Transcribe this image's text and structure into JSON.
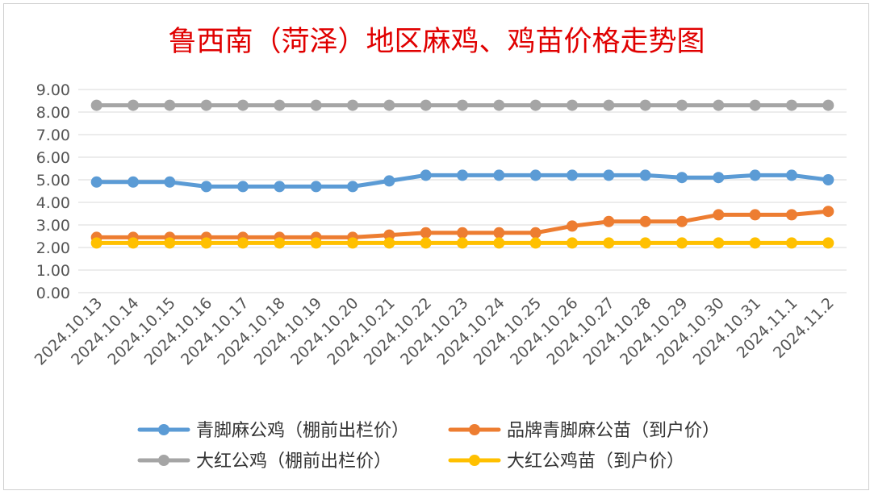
{
  "chart_data": {
    "type": "line",
    "title": "鲁西南（菏泽）地区麻鸡、鸡苗价格走势图",
    "xlabel": "",
    "ylabel": "",
    "ylim": [
      0,
      9
    ],
    "y_ticks": [
      "0.00",
      "1.00",
      "2.00",
      "3.00",
      "4.00",
      "5.00",
      "6.00",
      "7.00",
      "8.00",
      "9.00"
    ],
    "grid": true,
    "legend_position": "bottom",
    "categories": [
      "2024.10.13",
      "2024.10.14",
      "2024.10.15",
      "2024.10.16",
      "2024.10.17",
      "2024.10.18",
      "2024.10.19",
      "2024.10.20",
      "2024.10.21",
      "2024.10.22",
      "2024.10.23",
      "2024.10.24",
      "2024.10.25",
      "2024.10.26",
      "2024.10.27",
      "2024.10.28",
      "2024.10.29",
      "2024.10.30",
      "2024.10.31",
      "2024.11.1",
      "2024.11.2"
    ],
    "series": [
      {
        "name": "青脚麻公鸡（棚前出栏价）",
        "color": "#5b9bd5",
        "values": [
          4.9,
          4.9,
          4.9,
          4.7,
          4.7,
          4.7,
          4.7,
          4.7,
          4.95,
          5.2,
          5.2,
          5.2,
          5.2,
          5.2,
          5.2,
          5.2,
          5.1,
          5.1,
          5.2,
          5.2,
          5.0
        ]
      },
      {
        "name": "品牌青脚麻公苗（到户价）",
        "color": "#ed7d31",
        "values": [
          2.45,
          2.45,
          2.45,
          2.45,
          2.45,
          2.45,
          2.45,
          2.45,
          2.55,
          2.65,
          2.65,
          2.65,
          2.65,
          2.95,
          3.15,
          3.15,
          3.15,
          3.45,
          3.45,
          3.45,
          3.6
        ]
      },
      {
        "name": "大红公鸡（棚前出栏价）",
        "color": "#a5a5a5",
        "values": [
          8.3,
          8.3,
          8.3,
          8.3,
          8.3,
          8.3,
          8.3,
          8.3,
          8.3,
          8.3,
          8.3,
          8.3,
          8.3,
          8.3,
          8.3,
          8.3,
          8.3,
          8.3,
          8.3,
          8.3,
          8.3
        ]
      },
      {
        "name": "大红公鸡苗（到户价）",
        "color": "#ffc000",
        "values": [
          2.2,
          2.2,
          2.2,
          2.2,
          2.2,
          2.2,
          2.2,
          2.2,
          2.2,
          2.2,
          2.2,
          2.2,
          2.2,
          2.2,
          2.2,
          2.2,
          2.2,
          2.2,
          2.2,
          2.2,
          2.2
        ]
      }
    ]
  }
}
